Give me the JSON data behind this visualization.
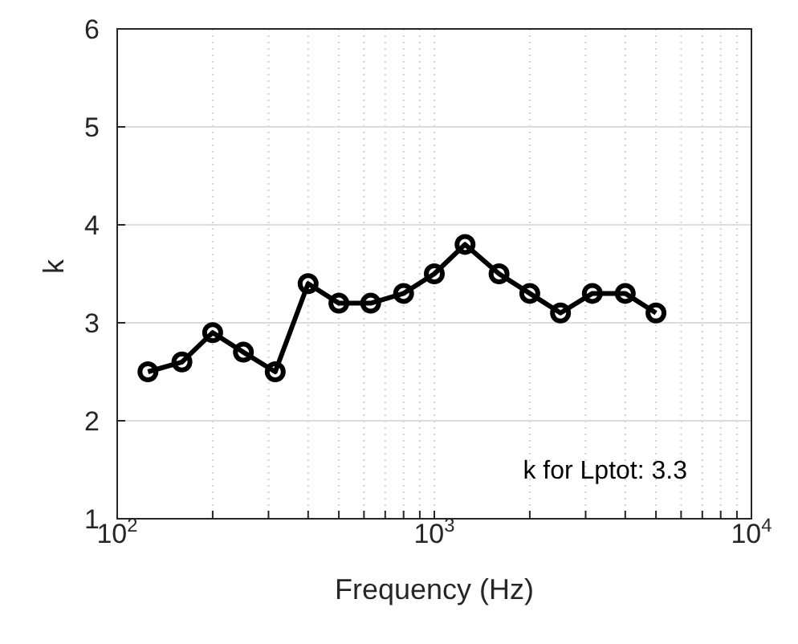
{
  "chart_data": {
    "type": "line",
    "xlabel": "Frequency (Hz)",
    "ylabel": "k",
    "log": "x",
    "grid": true,
    "marker": "circle",
    "line_style": "solid",
    "x": [
      125,
      160,
      200,
      250,
      315,
      400,
      500,
      630,
      800,
      1000,
      1250,
      1600,
      2000,
      2500,
      3150,
      4000,
      5000
    ],
    "series": [
      {
        "color": "#000000",
        "values": [
          2.5,
          2.6,
          2.9,
          2.7,
          2.5,
          3.4,
          3.2,
          3.2,
          3.3,
          3.5,
          3.8,
          3.5,
          3.3,
          3.1,
          3.3,
          3.3,
          3.1
        ]
      }
    ],
    "xlim": [
      100,
      10000
    ],
    "xticks": [
      {
        "value": 100,
        "label": "10$^{2}$"
      },
      {
        "value": 200,
        "label": null
      },
      {
        "value": 300,
        "label": null
      },
      {
        "value": 400,
        "label": null
      },
      {
        "value": 500,
        "label": null
      },
      {
        "value": 600,
        "label": null
      },
      {
        "value": 700,
        "label": null
      },
      {
        "value": 800,
        "label": null
      },
      {
        "value": 900,
        "label": null
      },
      {
        "value": 1000,
        "label": "10$^{3}$"
      },
      {
        "value": 2000,
        "label": null
      },
      {
        "value": 3000,
        "label": null
      },
      {
        "value": 4000,
        "label": null
      },
      {
        "value": 5000,
        "label": null
      },
      {
        "value": 6000,
        "label": null
      },
      {
        "value": 7000,
        "label": null
      },
      {
        "value": 8000,
        "label": null
      },
      {
        "value": 9000,
        "label": null
      },
      {
        "value": 10000,
        "label": "10$^{4}$"
      }
    ],
    "ylim": [
      1,
      6
    ],
    "yticks": [
      1,
      2,
      3,
      4,
      5,
      6
    ],
    "annotations": [
      "k for Lptot: 3.3"
    ]
  }
}
